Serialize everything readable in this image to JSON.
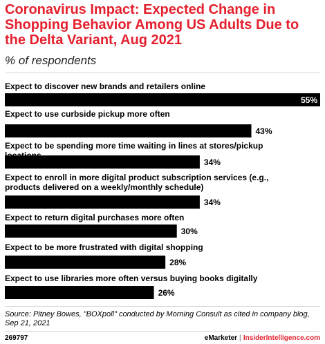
{
  "header": {
    "title": "Coronavirus Impact: Expected Change in Shopping Behavior Among US Adults Due to the Delta Variant, Aug 2021",
    "subtitle": "% of respondents"
  },
  "chart_data": {
    "type": "bar",
    "orientation": "horizontal",
    "categories": [
      "Expect to discover new brands and retailers online",
      "Expect to use curbside pickup more often",
      "Expect to be spending more time waiting in lines at stores/pickup locations",
      "Expect to enroll in more digital product subscription services (e.g., products delivered on a weekly/monthly schedule)",
      "Expect to return digital purchases more often",
      "Expect to be more frustrated with digital shopping",
      "Expect to use libraries more often versus buying books digitally"
    ],
    "values": [
      55,
      43,
      34,
      34,
      30,
      28,
      26
    ],
    "value_labels": [
      "55%",
      "43%",
      "34%",
      "34%",
      "30%",
      "28%",
      "26%"
    ],
    "xlim": [
      0,
      55
    ],
    "grid": false,
    "legend": "none",
    "bar_color": "#000000"
  },
  "footer": {
    "source": "Source: Pitney Bowes, \"BOXpoll\" conducted by Morning Consult as cited in company blog, Sep 21, 2021",
    "chart_id": "269797",
    "brand_emarketer": "eMarketer",
    "separator": "|",
    "brand_insider": "InsiderIntelligence.com"
  },
  "colors": {
    "accent": "#e5202e",
    "bar": "#000000",
    "rule": "#d7d7d7"
  }
}
